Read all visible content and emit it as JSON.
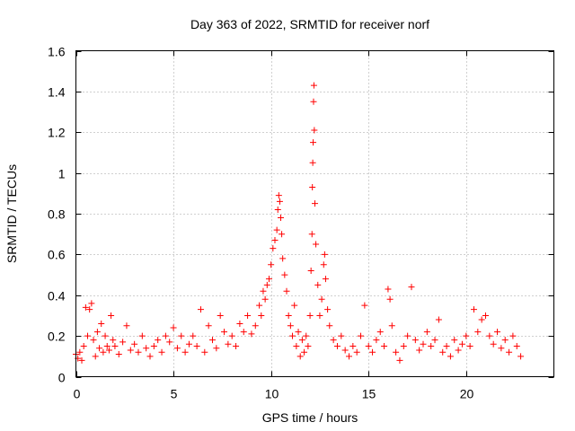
{
  "chart_data": {
    "type": "scatter",
    "title": "Day 363 of 2022, SRMTID for receiver norf",
    "xlabel": "GPS time / hours",
    "ylabel": "SRMTID / TECUs",
    "xlim": [
      0,
      24.5
    ],
    "ylim": [
      0,
      1.6
    ],
    "x_ticks": [
      0,
      5,
      10,
      15,
      20
    ],
    "x_tick_labels": [
      "0",
      "5",
      "10",
      "15",
      "20"
    ],
    "y_ticks": [
      0,
      0.2,
      0.4,
      0.6,
      0.8,
      1.0,
      1.2,
      1.4,
      1.6
    ],
    "y_tick_labels": [
      "0",
      "0.2",
      "0.4",
      "0.6",
      "0.8",
      "1",
      "1.2",
      "1.4",
      "1.6"
    ],
    "grid": true,
    "marker": "+",
    "series": [
      {
        "name": "SRMTID",
        "color": "#ff0000",
        "points": [
          [
            0.0,
            0.11
          ],
          [
            0.1,
            0.09
          ],
          [
            0.2,
            0.12
          ],
          [
            0.3,
            0.08
          ],
          [
            0.4,
            0.15
          ],
          [
            0.5,
            0.34
          ],
          [
            0.6,
            0.2
          ],
          [
            0.7,
            0.33
          ],
          [
            0.8,
            0.36
          ],
          [
            0.9,
            0.18
          ],
          [
            1.0,
            0.1
          ],
          [
            1.1,
            0.22
          ],
          [
            1.2,
            0.14
          ],
          [
            1.3,
            0.26
          ],
          [
            1.4,
            0.12
          ],
          [
            1.5,
            0.2
          ],
          [
            1.6,
            0.15
          ],
          [
            1.7,
            0.13
          ],
          [
            1.8,
            0.3
          ],
          [
            1.9,
            0.18
          ],
          [
            2.0,
            0.15
          ],
          [
            2.2,
            0.11
          ],
          [
            2.4,
            0.17
          ],
          [
            2.6,
            0.25
          ],
          [
            2.8,
            0.13
          ],
          [
            3.0,
            0.16
          ],
          [
            3.2,
            0.12
          ],
          [
            3.4,
            0.2
          ],
          [
            3.6,
            0.14
          ],
          [
            3.8,
            0.1
          ],
          [
            4.0,
            0.15
          ],
          [
            4.2,
            0.18
          ],
          [
            4.4,
            0.12
          ],
          [
            4.6,
            0.2
          ],
          [
            4.8,
            0.17
          ],
          [
            5.0,
            0.24
          ],
          [
            5.2,
            0.14
          ],
          [
            5.4,
            0.2
          ],
          [
            5.6,
            0.12
          ],
          [
            5.8,
            0.16
          ],
          [
            6.0,
            0.2
          ],
          [
            6.2,
            0.15
          ],
          [
            6.4,
            0.33
          ],
          [
            6.6,
            0.12
          ],
          [
            6.8,
            0.25
          ],
          [
            7.0,
            0.18
          ],
          [
            7.2,
            0.14
          ],
          [
            7.4,
            0.3
          ],
          [
            7.6,
            0.22
          ],
          [
            7.8,
            0.16
          ],
          [
            8.0,
            0.2
          ],
          [
            8.2,
            0.15
          ],
          [
            8.4,
            0.26
          ],
          [
            8.6,
            0.22
          ],
          [
            8.8,
            0.3
          ],
          [
            9.0,
            0.21
          ],
          [
            9.2,
            0.25
          ],
          [
            9.4,
            0.35
          ],
          [
            9.5,
            0.3
          ],
          [
            9.6,
            0.42
          ],
          [
            9.7,
            0.38
          ],
          [
            9.8,
            0.45
          ],
          [
            9.9,
            0.48
          ],
          [
            10.0,
            0.55
          ],
          [
            10.1,
            0.63
          ],
          [
            10.2,
            0.67
          ],
          [
            10.3,
            0.72
          ],
          [
            10.35,
            0.82
          ],
          [
            10.4,
            0.89
          ],
          [
            10.45,
            0.86
          ],
          [
            10.5,
            0.78
          ],
          [
            10.55,
            0.7
          ],
          [
            10.6,
            0.58
          ],
          [
            10.7,
            0.5
          ],
          [
            10.8,
            0.42
          ],
          [
            10.9,
            0.3
          ],
          [
            11.0,
            0.25
          ],
          [
            11.1,
            0.2
          ],
          [
            11.2,
            0.35
          ],
          [
            11.3,
            0.15
          ],
          [
            11.4,
            0.22
          ],
          [
            11.5,
            0.1
          ],
          [
            11.6,
            0.18
          ],
          [
            11.7,
            0.12
          ],
          [
            11.8,
            0.2
          ],
          [
            11.9,
            0.15
          ],
          [
            12.0,
            0.3
          ],
          [
            12.05,
            0.52
          ],
          [
            12.1,
            0.7
          ],
          [
            12.12,
            0.93
          ],
          [
            12.14,
            1.05
          ],
          [
            12.16,
            1.15
          ],
          [
            12.18,
            1.35
          ],
          [
            12.2,
            1.43
          ],
          [
            12.22,
            1.21
          ],
          [
            12.25,
            0.85
          ],
          [
            12.3,
            0.65
          ],
          [
            12.4,
            0.45
          ],
          [
            12.5,
            0.3
          ],
          [
            12.6,
            0.38
          ],
          [
            12.7,
            0.55
          ],
          [
            12.75,
            0.6
          ],
          [
            12.8,
            0.48
          ],
          [
            12.9,
            0.33
          ],
          [
            13.0,
            0.25
          ],
          [
            13.2,
            0.18
          ],
          [
            13.4,
            0.15
          ],
          [
            13.6,
            0.2
          ],
          [
            13.8,
            0.13
          ],
          [
            14.0,
            0.1
          ],
          [
            14.2,
            0.15
          ],
          [
            14.4,
            0.12
          ],
          [
            14.6,
            0.2
          ],
          [
            14.8,
            0.35
          ],
          [
            15.0,
            0.15
          ],
          [
            15.2,
            0.12
          ],
          [
            15.4,
            0.18
          ],
          [
            15.6,
            0.22
          ],
          [
            15.8,
            0.15
          ],
          [
            16.0,
            0.43
          ],
          [
            16.1,
            0.38
          ],
          [
            16.2,
            0.25
          ],
          [
            16.4,
            0.12
          ],
          [
            16.6,
            0.08
          ],
          [
            16.8,
            0.15
          ],
          [
            17.0,
            0.2
          ],
          [
            17.2,
            0.44
          ],
          [
            17.4,
            0.18
          ],
          [
            17.6,
            0.13
          ],
          [
            17.8,
            0.16
          ],
          [
            18.0,
            0.22
          ],
          [
            18.2,
            0.15
          ],
          [
            18.4,
            0.18
          ],
          [
            18.6,
            0.28
          ],
          [
            18.8,
            0.12
          ],
          [
            19.0,
            0.15
          ],
          [
            19.2,
            0.1
          ],
          [
            19.4,
            0.18
          ],
          [
            19.6,
            0.13
          ],
          [
            19.8,
            0.16
          ],
          [
            20.0,
            0.2
          ],
          [
            20.2,
            0.15
          ],
          [
            20.4,
            0.33
          ],
          [
            20.6,
            0.22
          ],
          [
            20.8,
            0.28
          ],
          [
            21.0,
            0.3
          ],
          [
            21.2,
            0.2
          ],
          [
            21.4,
            0.16
          ],
          [
            21.6,
            0.22
          ],
          [
            21.8,
            0.14
          ],
          [
            22.0,
            0.18
          ],
          [
            22.2,
            0.12
          ],
          [
            22.4,
            0.2
          ],
          [
            22.6,
            0.15
          ],
          [
            22.8,
            0.1
          ]
        ]
      }
    ]
  }
}
